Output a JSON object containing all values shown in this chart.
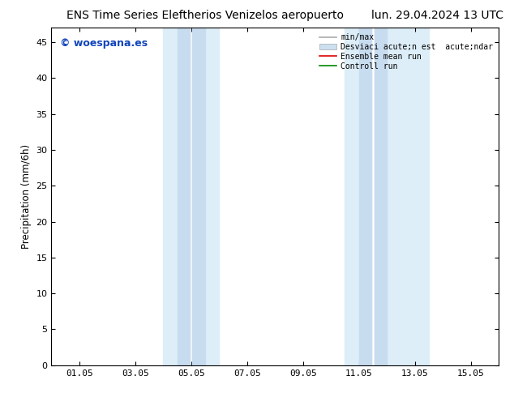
{
  "title_left": "ENS Time Series Eleftherios Venizelos aeropuerto",
  "title_right": "lun. 29.04.2024 13 UTC",
  "ylabel": "Precipitation (mm/6h)",
  "ylim": [
    0,
    47
  ],
  "yticks": [
    0,
    5,
    10,
    15,
    20,
    25,
    30,
    35,
    40,
    45
  ],
  "xlabel": "",
  "xtick_labels": [
    "01.05",
    "03.05",
    "05.05",
    "07.05",
    "09.05",
    "11.05",
    "13.05",
    "15.05"
  ],
  "xtick_positions": [
    1,
    3,
    5,
    7,
    9,
    11,
    13,
    15
  ],
  "xlim": [
    0,
    16
  ],
  "shaded_cols": [
    {
      "xmin": 4.0,
      "xmax": 4.9,
      "color": "#ddeef8"
    },
    {
      "xmin": 5.0,
      "xmax": 6.0,
      "color": "#ddeef8"
    },
    {
      "xmin": 10.5,
      "xmax": 11.4,
      "color": "#ddeef8"
    },
    {
      "xmin": 11.5,
      "xmax": 13.5,
      "color": "#ddeef8"
    }
  ],
  "shaded_inner": [
    {
      "xmin": 4.5,
      "xmax": 4.9,
      "color": "#cce0f0"
    },
    {
      "xmin": 5.0,
      "xmax": 5.5,
      "color": "#cce0f0"
    },
    {
      "xmin": 11.5,
      "xmax": 11.9,
      "color": "#cce0f0"
    },
    {
      "xmin": 12.0,
      "xmax": 12.5,
      "color": "#cce0f0"
    }
  ],
  "watermark_text": "© woespana.es",
  "watermark_color": "#1144bb",
  "bg_color": "#ffffff",
  "plot_bg_color": "#ffffff",
  "title_fontsize": 10,
  "axis_fontsize": 8.5,
  "tick_fontsize": 8,
  "legend_label1": "min/max",
  "legend_label2": "Desviaci acute;n est  acute;ndar",
  "legend_label3": "Ensemble mean run",
  "legend_label4": "Controll run",
  "legend_color1": "#aaaaaa",
  "legend_color2": "#cce0f0",
  "legend_color3": "#dd0000",
  "legend_color4": "#008800"
}
